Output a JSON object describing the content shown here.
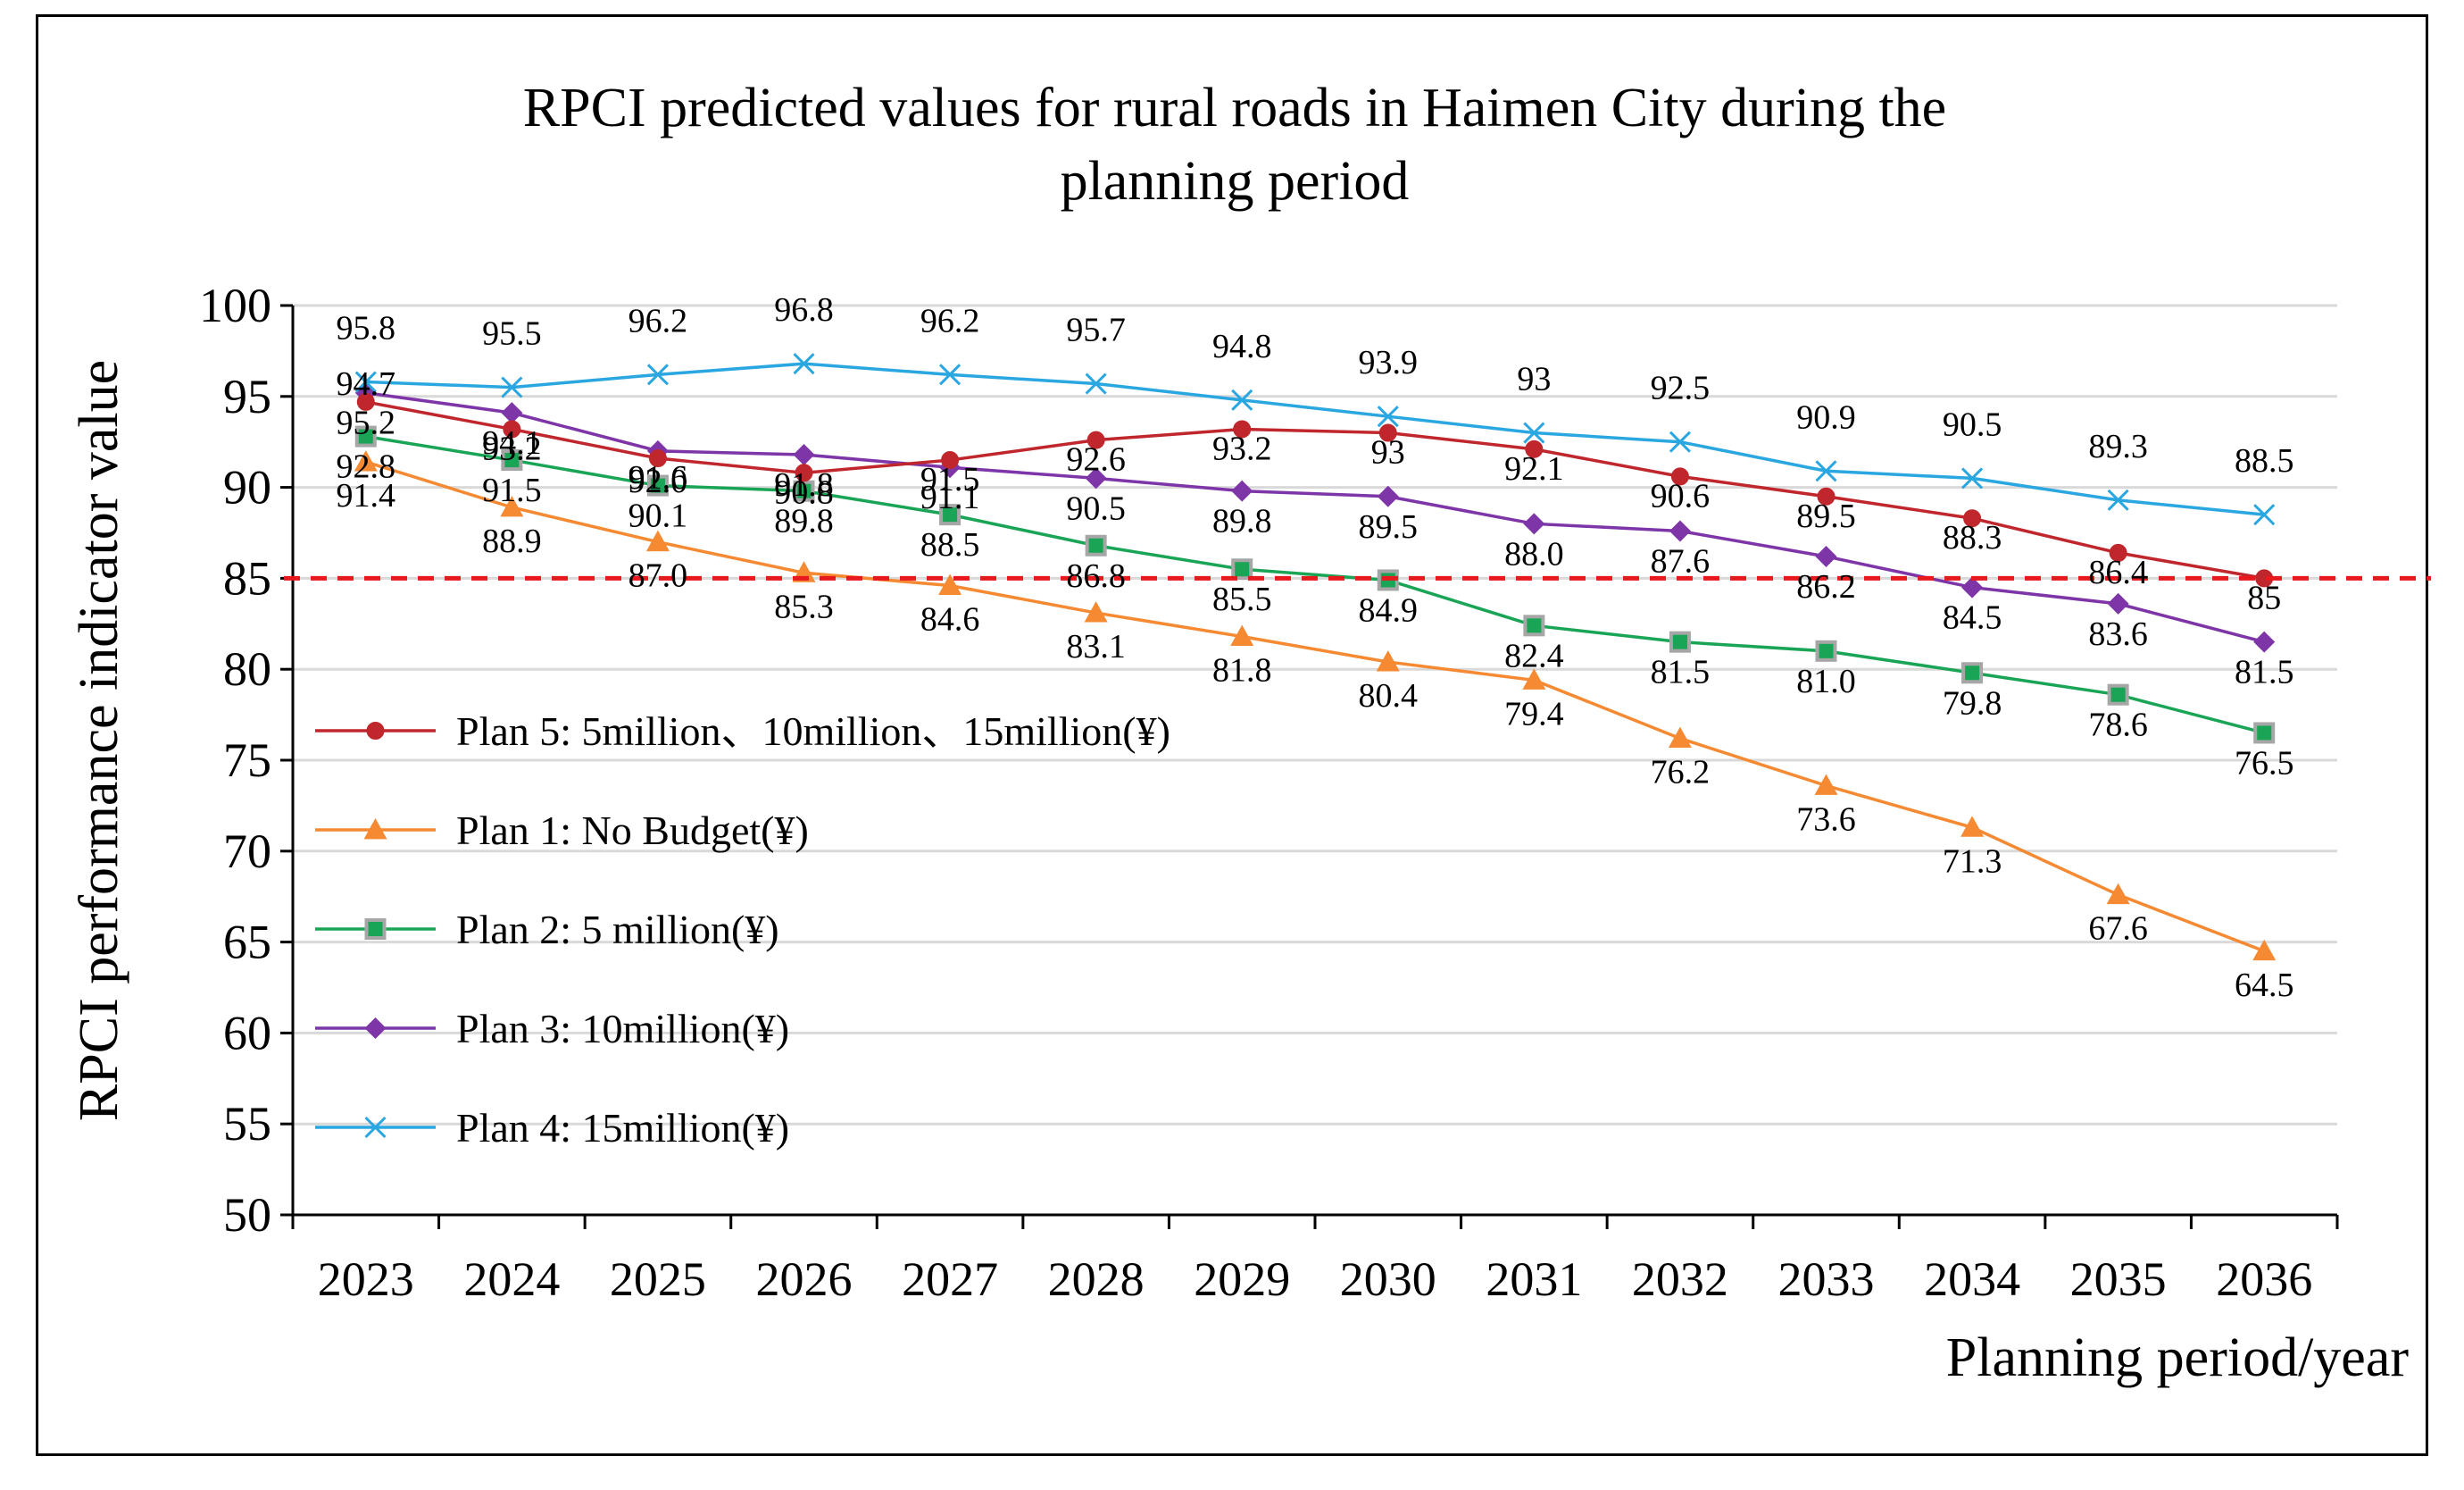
{
  "chart_data": {
    "type": "line",
    "title": [
      "RPCI predicted values for rural roads in Haimen City during the",
      "planning period"
    ],
    "xlabel": "Planning period/year",
    "ylabel": "RPCI performance indicator value",
    "ylim": [
      50,
      100
    ],
    "yticks": [
      "100",
      "95",
      "90",
      "85",
      "80",
      "75",
      "70",
      "65",
      "60",
      "55",
      "50"
    ],
    "categories": [
      "2023",
      "2024",
      "2025",
      "2026",
      "2027",
      "2028",
      "2029",
      "2030",
      "2031",
      "2032",
      "2033",
      "2034",
      "2035",
      "2036"
    ],
    "reference_line": {
      "value": 85,
      "color": "#e8191d",
      "style": "dashed"
    },
    "series": [
      {
        "key": "plan5",
        "name": "Plan 5: 5million、10million、15million(¥)",
        "color": "#c0272d",
        "marker": "circle",
        "values": [
          94.7,
          93.2,
          91.6,
          90.8,
          91.5,
          92.6,
          93.2,
          93,
          92.1,
          90.6,
          89.5,
          88.3,
          86.4,
          85
        ],
        "labels": [
          "94.7",
          "93.2",
          "91.6",
          "90.8",
          "91.5",
          "92.6",
          "93.2",
          "93",
          "92.1",
          "90.6",
          "89.5",
          "88.3",
          "86.4",
          "85"
        ]
      },
      {
        "key": "plan1",
        "name": "Plan 1: No Budget(¥)",
        "color": "#f58a33",
        "marker": "triangle",
        "values": [
          91.4,
          88.9,
          87.0,
          85.3,
          84.6,
          83.1,
          81.8,
          80.4,
          79.4,
          76.2,
          73.6,
          71.3,
          67.6,
          64.5
        ],
        "labels": [
          "91.4",
          "88.9",
          "87.0",
          "85.3",
          "84.6",
          "83.1",
          "81.8",
          "80.4",
          "79.4",
          "76.2",
          "73.6",
          "71.3",
          "67.6",
          "64.5"
        ]
      },
      {
        "key": "plan2",
        "name": "Plan 2: 5 million(¥)",
        "color": "#1aa556",
        "marker": "square",
        "values": [
          92.8,
          91.5,
          90.1,
          89.8,
          88.5,
          86.8,
          85.5,
          84.9,
          82.4,
          81.5,
          81.0,
          79.8,
          78.6,
          76.5
        ],
        "labels": [
          "92.8",
          "91.5",
          "90.1",
          "89.8",
          "88.5",
          "86.8",
          "85.5",
          "84.9",
          "82.4",
          "81.5",
          "81.0",
          "79.8",
          "78.6",
          "76.5"
        ]
      },
      {
        "key": "plan3",
        "name": "Plan 3: 10million(¥)",
        "color": "#7d35a8",
        "marker": "diamond",
        "values": [
          95.2,
          94.1,
          92.0,
          91.8,
          91.1,
          90.5,
          89.8,
          89.5,
          88.0,
          87.6,
          86.2,
          84.5,
          83.6,
          81.5
        ],
        "labels": [
          "95.2",
          "94.1",
          "92.0",
          "91.8",
          "91.1",
          "90.5",
          "89.8",
          "89.5",
          "88.0",
          "87.6",
          "86.2",
          "84.5",
          "83.6",
          "81.5"
        ]
      },
      {
        "key": "plan4",
        "name": "Plan 4: 15million(¥)",
        "color": "#2aa7e0",
        "marker": "x",
        "values": [
          95.8,
          95.5,
          96.2,
          96.8,
          96.2,
          95.7,
          94.8,
          93.9,
          93,
          92.5,
          90.9,
          90.5,
          89.3,
          88.5
        ],
        "labels": [
          "95.8",
          "95.5",
          "96.2",
          "96.8",
          "96.2",
          "95.7",
          "94.8",
          "93.9",
          "93",
          "92.5",
          "90.9",
          "90.5",
          "89.3",
          "88.5"
        ]
      }
    ],
    "legend_order": [
      "plan5",
      "plan1",
      "plan2",
      "plan3",
      "plan4"
    ],
    "legend_position": "left-middle",
    "grid": true
  }
}
